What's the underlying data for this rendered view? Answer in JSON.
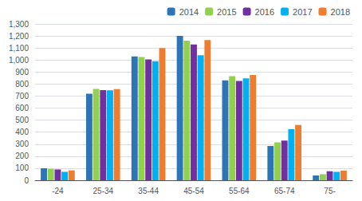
{
  "chart_data": {
    "type": "bar",
    "categories": [
      "-24",
      "25-34",
      "35-44",
      "45-54",
      "55-64",
      "65-74",
      "75-"
    ],
    "series": [
      {
        "name": "2014",
        "color": "#2e75b6",
        "values": [
          100,
          720,
          1030,
          1200,
          830,
          285,
          40
        ]
      },
      {
        "name": "2015",
        "color": "#92d050",
        "values": [
          95,
          760,
          1025,
          1160,
          865,
          315,
          50
        ]
      },
      {
        "name": "2016",
        "color": "#7030a0",
        "values": [
          90,
          750,
          1005,
          1130,
          825,
          330,
          75
        ]
      },
      {
        "name": "2017",
        "color": "#00b0f0",
        "values": [
          70,
          748,
          990,
          1040,
          848,
          425,
          70
        ]
      },
      {
        "name": "2018",
        "color": "#ed7d31",
        "values": [
          82,
          758,
          1100,
          1165,
          875,
          460,
          80
        ]
      }
    ],
    "ylim": [
      0,
      1300
    ],
    "yticks": [
      0,
      100,
      200,
      300,
      400,
      500,
      600,
      700,
      800,
      900,
      1000,
      1100,
      1200,
      1300
    ],
    "grid": true,
    "legend": "upper right"
  }
}
